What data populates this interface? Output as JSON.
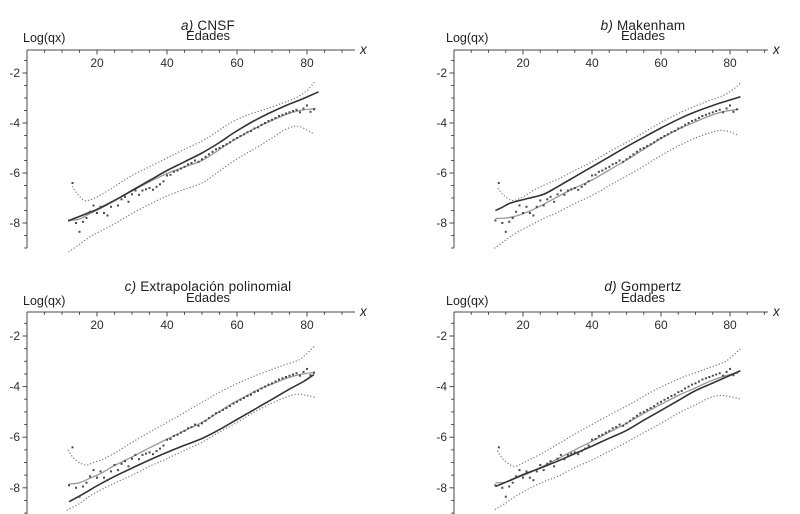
{
  "chart_data": {
    "type": "scatter",
    "description_layout": "2x2 grid of mortality model fit panels",
    "shared": {
      "axis_title": "Edades",
      "y_label": "Log(qx)",
      "x_label": "x",
      "x_ticks": [
        20,
        40,
        60,
        80
      ],
      "y_ticks": [
        -2,
        -4,
        -6,
        -8
      ],
      "x_minor_step": 5,
      "y_minor_step": 0.5,
      "x_range": [
        0,
        93
      ],
      "y_range": [
        -9,
        -1.1
      ],
      "colors": {
        "fit_line": "#333333",
        "smooth_line": "#989898",
        "band": "#7a7a7a",
        "points": "#4a4a4a",
        "axis": "#4a4a4a",
        "text": "#2e2e2e",
        "background": "#ffffff"
      },
      "scatter": {
        "age_min": 12,
        "age_max": 82,
        "log_qx": [
          -7.9,
          -6.4,
          -8.0,
          -8.35,
          -7.95,
          -7.8,
          -7.55,
          -7.3,
          -7.6,
          -7.35,
          -7.6,
          -7.7,
          -7.35,
          -7.1,
          -7.3,
          -7.05,
          -6.95,
          -7.15,
          -6.85,
          -6.7,
          -6.87,
          -6.7,
          -6.65,
          -6.6,
          -6.67,
          -6.55,
          -6.45,
          -6.33,
          -6.1,
          -6.07,
          -5.95,
          -5.9,
          -5.82,
          -5.75,
          -5.65,
          -5.6,
          -5.5,
          -5.55,
          -5.45,
          -5.35,
          -5.25,
          -5.15,
          -5.05,
          -5.0,
          -4.92,
          -4.85,
          -4.77,
          -4.67,
          -4.6,
          -4.52,
          -4.45,
          -4.37,
          -4.32,
          -4.22,
          -4.17,
          -4.07,
          -4.0,
          -3.92,
          -3.87,
          -3.8,
          -3.72,
          -3.67,
          -3.62,
          -3.57,
          -3.52,
          -3.47,
          -3.57,
          -3.42,
          -3.3,
          -3.55,
          -3.45
        ]
      }
    },
    "panels": [
      {
        "id": "a",
        "title_prefix": "a)",
        "title": "CNSF",
        "fit_line": {
          "x": [
            12,
            16,
            20,
            25,
            30,
            35,
            40,
            45,
            50,
            55,
            59,
            64,
            69,
            74,
            79,
            83.3
          ],
          "y": [
            -7.9,
            -7.68,
            -7.45,
            -7.1,
            -6.7,
            -6.3,
            -5.9,
            -5.55,
            -5.2,
            -4.78,
            -4.4,
            -3.98,
            -3.62,
            -3.3,
            -3.02,
            -2.75
          ]
        },
        "smooth_line": {
          "x": [
            12,
            15,
            18,
            21,
            25,
            30,
            35,
            40,
            45,
            50,
            54,
            58,
            62,
            66,
            70,
            74,
            78,
            82.5
          ],
          "y": [
            -7.9,
            -7.84,
            -7.62,
            -7.42,
            -7.1,
            -6.72,
            -6.35,
            -6.02,
            -5.76,
            -5.5,
            -5.15,
            -4.78,
            -4.45,
            -4.15,
            -3.9,
            -3.66,
            -3.5,
            -3.42
          ]
        },
        "band_upper": {
          "x": [
            13,
            14.5,
            16.5,
            19,
            22,
            26,
            30,
            35,
            40,
            45,
            50,
            54,
            58,
            63,
            68,
            73,
            77,
            80,
            82.5
          ],
          "y": [
            -6.55,
            -6.85,
            -7.1,
            -7.02,
            -6.8,
            -6.45,
            -6.1,
            -5.75,
            -5.4,
            -5.05,
            -4.72,
            -4.38,
            -4.0,
            -3.68,
            -3.45,
            -3.2,
            -2.98,
            -2.7,
            -2.3
          ]
        },
        "band_lower": {
          "x": [
            12,
            15,
            18,
            22,
            26,
            30,
            35,
            40,
            45,
            50,
            54,
            58,
            62,
            66,
            70,
            74,
            77.5,
            81.5
          ],
          "y": [
            -9.15,
            -8.85,
            -8.55,
            -8.25,
            -7.95,
            -7.62,
            -7.25,
            -6.92,
            -6.65,
            -6.4,
            -6.02,
            -5.62,
            -5.27,
            -4.95,
            -4.6,
            -4.25,
            -4.13,
            -4.4
          ]
        }
      },
      {
        "id": "b",
        "title_prefix": "b)",
        "title": "Makenham",
        "fit_line": {
          "x": [
            12,
            14,
            16,
            19,
            22,
            26,
            30,
            35,
            40,
            45,
            50,
            55,
            60,
            65,
            70,
            75,
            79,
            83
          ],
          "y": [
            -7.5,
            -7.37,
            -7.22,
            -7.1,
            -7.0,
            -6.85,
            -6.55,
            -6.15,
            -5.75,
            -5.35,
            -4.95,
            -4.57,
            -4.2,
            -3.85,
            -3.55,
            -3.3,
            -3.12,
            -2.95
          ]
        },
        "smooth_line": {
          "x": [
            12,
            15,
            18,
            22,
            26,
            30,
            35,
            40,
            45,
            50,
            55,
            60,
            65,
            70,
            74,
            78,
            82.5
          ],
          "y": [
            -7.82,
            -7.8,
            -7.72,
            -7.52,
            -7.25,
            -6.95,
            -6.6,
            -6.28,
            -5.88,
            -5.48,
            -5.05,
            -4.62,
            -4.25,
            -3.95,
            -3.72,
            -3.55,
            -3.45
          ]
        },
        "band_upper": {
          "x": [
            12.8,
            14.5,
            17,
            20,
            24,
            30,
            35,
            40,
            45,
            50,
            55,
            60,
            65,
            70,
            74,
            78,
            81,
            83
          ],
          "y": [
            -6.62,
            -6.9,
            -7.1,
            -6.95,
            -6.62,
            -6.25,
            -5.9,
            -5.55,
            -5.15,
            -4.78,
            -4.38,
            -3.98,
            -3.62,
            -3.32,
            -3.1,
            -2.9,
            -2.65,
            -2.4
          ]
        },
        "band_lower": {
          "x": [
            11.8,
            15,
            18,
            22,
            26,
            30,
            35,
            40,
            45,
            50,
            55,
            60,
            65,
            70,
            74,
            77,
            80,
            82.5
          ],
          "y": [
            -9.0,
            -8.68,
            -8.4,
            -8.1,
            -7.82,
            -7.58,
            -7.22,
            -6.9,
            -6.5,
            -6.12,
            -5.72,
            -5.3,
            -4.92,
            -4.6,
            -4.4,
            -4.3,
            -4.35,
            -4.5
          ]
        }
      },
      {
        "id": "c",
        "title_prefix": "c)",
        "title": "Extrapolación polinomial",
        "fit_line": {
          "x": [
            12,
            16,
            20,
            25,
            30,
            35,
            40,
            45,
            50,
            55,
            60,
            65,
            70,
            75,
            79,
            82
          ],
          "y": [
            -8.55,
            -8.25,
            -7.92,
            -7.55,
            -7.22,
            -6.9,
            -6.6,
            -6.32,
            -6.05,
            -5.7,
            -5.3,
            -4.9,
            -4.5,
            -4.1,
            -3.8,
            -3.52
          ]
        },
        "smooth_line": {
          "x": [
            12,
            15,
            18,
            21,
            25,
            30,
            35,
            40,
            45,
            50,
            54,
            58,
            62,
            66,
            70,
            74,
            78,
            82
          ],
          "y": [
            -7.85,
            -7.8,
            -7.62,
            -7.44,
            -7.12,
            -6.78,
            -6.42,
            -6.08,
            -5.74,
            -5.42,
            -5.08,
            -4.72,
            -4.42,
            -4.12,
            -3.9,
            -3.68,
            -3.52,
            -3.44
          ]
        },
        "band_upper": {
          "x": [
            11.8,
            13.5,
            16.5,
            19,
            22,
            26,
            30,
            35,
            40,
            45,
            50,
            55,
            60,
            65,
            70,
            74,
            78,
            82
          ],
          "y": [
            -6.52,
            -6.85,
            -7.1,
            -7.0,
            -6.85,
            -6.55,
            -6.2,
            -5.8,
            -5.42,
            -5.02,
            -4.62,
            -4.22,
            -3.88,
            -3.58,
            -3.32,
            -3.12,
            -2.92,
            -2.42
          ]
        },
        "band_lower": {
          "x": [
            11.5,
            15,
            18,
            22,
            26,
            30,
            35,
            40,
            45,
            50,
            55,
            60,
            65,
            70,
            74,
            77,
            80,
            82
          ],
          "y": [
            -8.88,
            -8.62,
            -8.32,
            -8.02,
            -7.75,
            -7.5,
            -7.15,
            -6.85,
            -6.52,
            -6.2,
            -5.8,
            -5.42,
            -5.0,
            -4.65,
            -4.42,
            -4.3,
            -4.35,
            -4.42
          ]
        }
      },
      {
        "id": "d",
        "title_prefix": "d)",
        "title": "Gompertz",
        "fit_line": {
          "x": [
            12,
            16,
            20,
            25,
            30,
            35,
            40,
            45,
            50,
            55,
            60,
            65,
            70,
            76,
            83
          ],
          "y": [
            -7.95,
            -7.72,
            -7.48,
            -7.22,
            -6.95,
            -6.65,
            -6.35,
            -6.04,
            -5.73,
            -5.33,
            -4.94,
            -4.55,
            -4.16,
            -3.8,
            -3.37
          ]
        },
        "smooth_line": {
          "x": [
            12,
            15,
            18,
            21,
            25,
            30,
            35,
            40,
            45,
            50,
            55,
            60,
            65,
            70,
            74,
            78,
            82.5
          ],
          "y": [
            -7.8,
            -7.78,
            -7.62,
            -7.46,
            -7.2,
            -6.86,
            -6.5,
            -6.16,
            -5.8,
            -5.45,
            -5.06,
            -4.7,
            -4.35,
            -4.05,
            -3.8,
            -3.6,
            -3.44
          ]
        },
        "band_upper": {
          "x": [
            12.7,
            14.5,
            17.5,
            21,
            26,
            31,
            36,
            41,
            46,
            51,
            56,
            61,
            66,
            71,
            75,
            79,
            83
          ],
          "y": [
            -6.55,
            -6.9,
            -7.15,
            -6.95,
            -6.6,
            -6.2,
            -5.8,
            -5.42,
            -5.05,
            -4.7,
            -4.3,
            -3.95,
            -3.65,
            -3.4,
            -3.2,
            -2.98,
            -2.5
          ]
        },
        "band_lower": {
          "x": [
            12,
            15,
            18,
            22,
            26,
            30,
            35,
            40,
            45,
            50,
            55,
            60,
            65,
            70,
            74,
            77,
            80,
            83.5
          ],
          "y": [
            -8.85,
            -8.6,
            -8.32,
            -8.02,
            -7.76,
            -7.55,
            -7.2,
            -6.9,
            -6.55,
            -6.2,
            -5.82,
            -5.45,
            -5.05,
            -4.72,
            -4.45,
            -4.35,
            -4.4,
            -4.5
          ]
        }
      }
    ]
  }
}
